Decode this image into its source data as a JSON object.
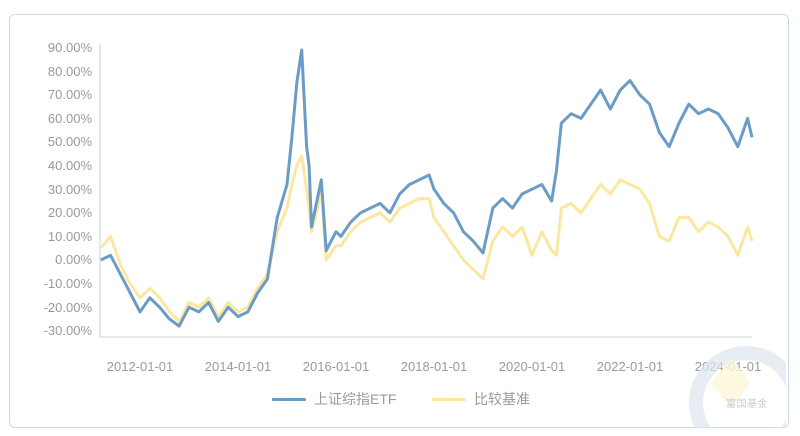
{
  "chart_data": {
    "type": "line",
    "title": "",
    "xlabel": "",
    "ylabel": "",
    "ylim": [
      -30,
      90
    ],
    "y_ticks": [
      "90.00%",
      "80.00%",
      "70.00%",
      "60.00%",
      "50.00%",
      "40.00%",
      "30.00%",
      "20.00%",
      "10.00%",
      "0.00%",
      "-10.00%",
      "-20.00%",
      "-30.00%"
    ],
    "x_ticks": [
      "2012-01-01",
      "2014-01-01",
      "2016-01-01",
      "2018-01-01",
      "2020-01-01",
      "2022-01-01",
      "2024-01-01"
    ],
    "grid": false,
    "legend_position": "bottom",
    "x": [
      2011.2,
      2011.4,
      2011.6,
      2011.8,
      2012.0,
      2012.2,
      2012.4,
      2012.6,
      2012.8,
      2013.0,
      2013.2,
      2013.4,
      2013.6,
      2013.8,
      2014.0,
      2014.2,
      2014.4,
      2014.6,
      2014.8,
      2015.0,
      2015.1,
      2015.2,
      2015.3,
      2015.4,
      2015.45,
      2015.5,
      2015.6,
      2015.7,
      2015.8,
      2016.0,
      2016.1,
      2016.3,
      2016.5,
      2016.7,
      2016.9,
      2017.1,
      2017.3,
      2017.5,
      2017.7,
      2017.9,
      2018.0,
      2018.2,
      2018.4,
      2018.6,
      2018.8,
      2019.0,
      2019.2,
      2019.4,
      2019.6,
      2019.8,
      2020.0,
      2020.2,
      2020.4,
      2020.5,
      2020.6,
      2020.8,
      2021.0,
      2021.2,
      2021.4,
      2021.6,
      2021.8,
      2022.0,
      2022.2,
      2022.4,
      2022.6,
      2022.8,
      2023.0,
      2023.2,
      2023.4,
      2023.6,
      2023.8,
      2024.0,
      2024.2,
      2024.4,
      2024.49
    ],
    "series": [
      {
        "name": "上证综指ETF",
        "color": "#6b9cc5",
        "values": [
          0,
          2,
          -6,
          -14,
          -22,
          -16,
          -20,
          -25,
          -28,
          -20,
          -22,
          -18,
          -26,
          -20,
          -24,
          -22,
          -14,
          -8,
          18,
          32,
          52,
          75,
          89,
          48,
          40,
          14,
          24,
          34,
          4,
          12,
          10,
          16,
          20,
          22,
          24,
          20,
          28,
          32,
          34,
          36,
          30,
          24,
          20,
          12,
          8,
          3,
          22,
          26,
          22,
          28,
          30,
          32,
          25,
          38,
          58,
          62,
          60,
          66,
          72,
          64,
          72,
          76,
          70,
          66,
          54,
          48,
          58,
          66,
          62,
          64,
          62,
          56,
          48,
          60,
          52
        ]
      },
      {
        "name": "比较基准",
        "color": "#fbe8a0",
        "values": [
          5,
          10,
          -2,
          -10,
          -16,
          -12,
          -16,
          -22,
          -26,
          -18,
          -20,
          -16,
          -24,
          -18,
          -22,
          -20,
          -12,
          -6,
          12,
          22,
          32,
          40,
          44,
          30,
          22,
          12,
          20,
          30,
          0,
          6,
          6,
          12,
          16,
          18,
          20,
          16,
          22,
          24,
          26,
          26,
          18,
          12,
          6,
          0,
          -4,
          -8,
          8,
          14,
          10,
          14,
          2,
          12,
          4,
          2,
          22,
          24,
          20,
          26,
          32,
          28,
          34,
          32,
          30,
          24,
          10,
          8,
          18,
          18,
          12,
          16,
          14,
          10,
          2,
          14,
          8
        ]
      }
    ]
  },
  "legend": {
    "items": [
      {
        "label": "上证综指ETF",
        "color": "#6b9cc5"
      },
      {
        "label": "比较基准",
        "color": "#fbe8a0"
      }
    ]
  },
  "watermark": {
    "text": "富国基金"
  }
}
